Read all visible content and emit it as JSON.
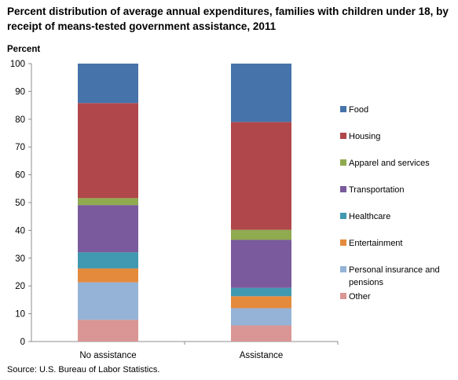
{
  "title": "Percent distribution of average annual expenditures, families with children under 18, by receipt of means-tested government assistance, 2011",
  "unit_label": "Percent",
  "source": "Source: U.S. Bureau of Labor Statistics.",
  "chart_data": {
    "type": "bar",
    "stacked": true,
    "categories": [
      "No assistance",
      "Assistance"
    ],
    "ylim": [
      0,
      100
    ],
    "yticks": [
      0,
      10,
      20,
      30,
      40,
      50,
      60,
      70,
      80,
      90,
      100
    ],
    "grid": false,
    "legend_placement": "right",
    "series": [
      {
        "name": "Other",
        "color": "#d99694",
        "values": [
          7.8,
          5.8
        ]
      },
      {
        "name": "Personal insurance and pensions",
        "color": "#95b3d7",
        "values": [
          13.5,
          6.2
        ]
      },
      {
        "name": "Entertainment",
        "color": "#e48a3d",
        "values": [
          5.0,
          4.3
        ]
      },
      {
        "name": "Healthcare",
        "color": "#4099b0",
        "values": [
          5.8,
          3.0
        ]
      },
      {
        "name": "Transportation",
        "color": "#7a5a9c",
        "values": [
          17.0,
          17.3
        ]
      },
      {
        "name": "Apparel and services",
        "color": "#8faa4f",
        "values": [
          2.5,
          3.6
        ]
      },
      {
        "name": "Housing",
        "color": "#b0474a",
        "values": [
          34.2,
          38.8
        ]
      },
      {
        "name": "Food",
        "color": "#4673aa",
        "values": [
          14.2,
          21.0
        ]
      }
    ],
    "legend_order": [
      "Food",
      "Housing",
      "Apparel and services",
      "Transportation",
      "Healthcare",
      "Entertainment",
      "Personal insurance and pensions",
      "Other"
    ]
  }
}
